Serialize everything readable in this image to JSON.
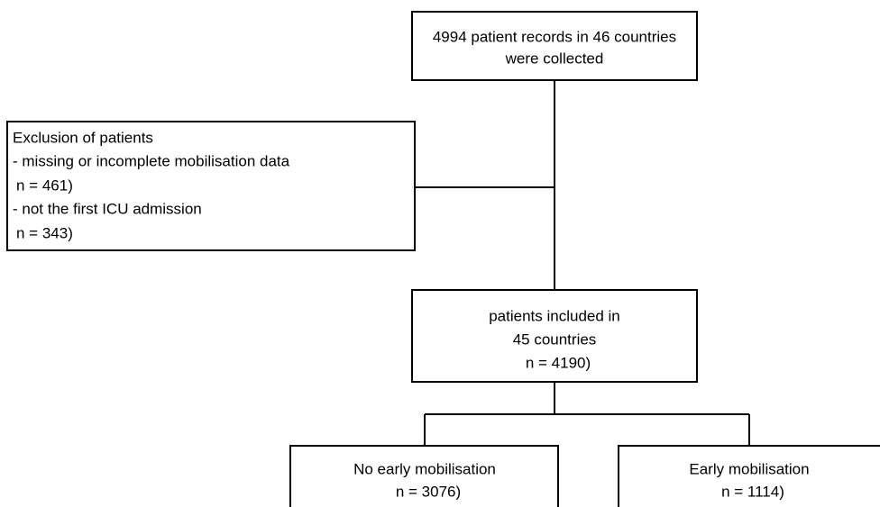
{
  "nodes": [
    {
      "lines": [
        "4994 patient records in 46 countries",
        "were collected"
      ]
    },
    {
      "lines": [
        "Exclusion of patients",
        "- missing or incomplete mobilisation data",
        "n = 461)",
        "- not the first ICU admission",
        "n = 343)"
      ]
    },
    {
      "lines": [
        "patients included in",
        "45 countries",
        "n = 4190)"
      ]
    },
    {
      "lines": [
        "No early mobilisation",
        "n = 3076)"
      ]
    },
    {
      "lines": [
        "Early mobilisation",
        "n = 1114)"
      ]
    }
  ]
}
